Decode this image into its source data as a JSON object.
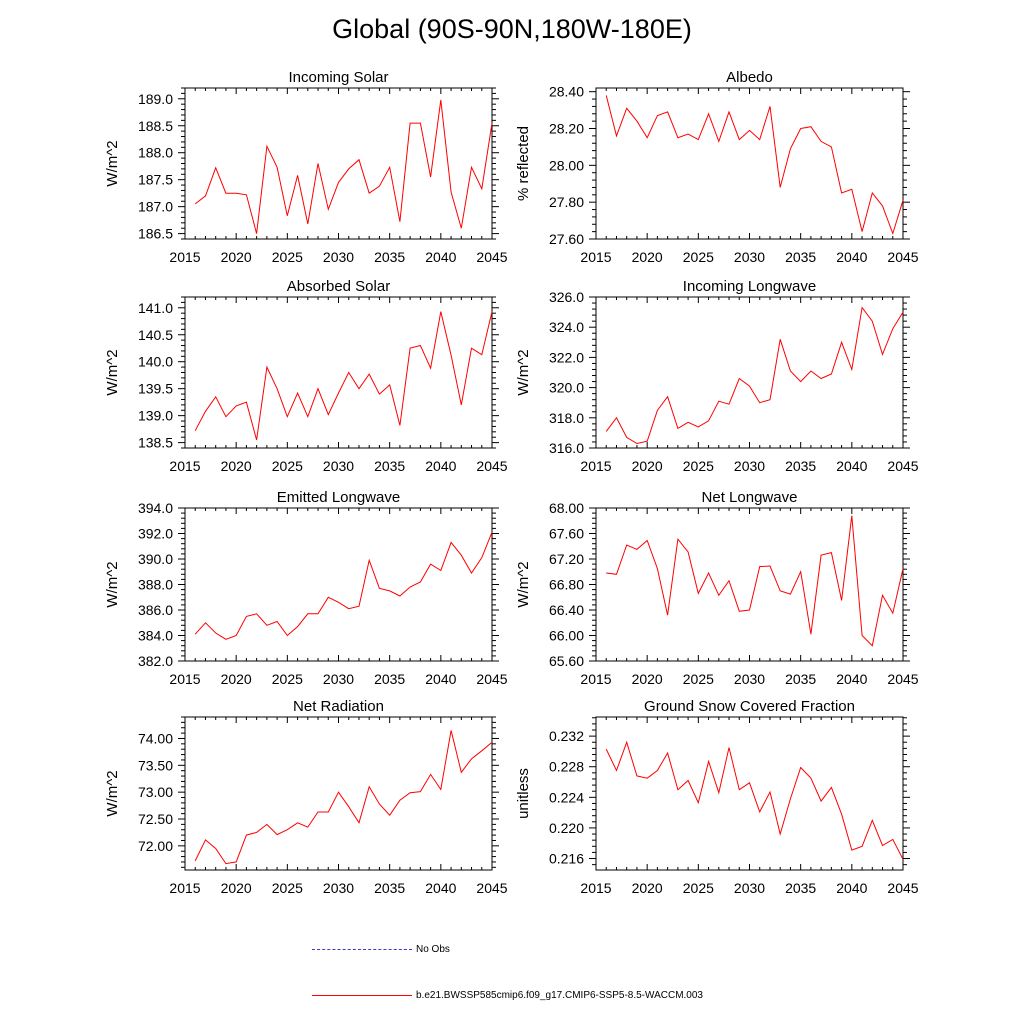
{
  "figure": {
    "title": "Global (90S-90N,180W-180E)",
    "line_color": "#ff0000",
    "obs_color": "#3a3acc"
  },
  "legend": {
    "obs_label": "No Obs",
    "model_label": "b.e21.BWSSP585cmip6.f09_g17.CMIP6-SSP5-8.5-WACCM.003"
  },
  "chart_data": [
    {
      "type": "line",
      "title": "Incoming Solar",
      "ylabel": "W/m^2",
      "xlim": [
        2015,
        2045
      ],
      "ylim": [
        186.4,
        189.2
      ],
      "xticks": [
        2015,
        2020,
        2025,
        2030,
        2035,
        2040,
        2045
      ],
      "yticks": [
        186.5,
        187.0,
        187.5,
        188.0,
        188.5,
        189.0
      ],
      "ydec": 1,
      "x": [
        2016,
        2017,
        2018,
        2019,
        2020,
        2021,
        2022,
        2023,
        2024,
        2025,
        2026,
        2027,
        2028,
        2029,
        2030,
        2031,
        2032,
        2033,
        2034,
        2035,
        2036,
        2037,
        2038,
        2039,
        2040,
        2041,
        2042,
        2043,
        2044,
        2045
      ],
      "values": [
        187.05,
        187.2,
        187.72,
        187.25,
        187.25,
        187.22,
        186.5,
        188.12,
        187.73,
        186.83,
        187.58,
        186.68,
        187.8,
        186.95,
        187.45,
        187.7,
        187.87,
        187.25,
        187.38,
        187.73,
        186.72,
        188.55,
        188.55,
        187.55,
        188.98,
        187.27,
        186.6,
        187.73,
        187.33,
        188.55
      ]
    },
    {
      "type": "line",
      "title": "Albedo",
      "ylabel": "% reflected",
      "xlim": [
        2015,
        2045
      ],
      "ylim": [
        27.6,
        28.42
      ],
      "xticks": [
        2015,
        2020,
        2025,
        2030,
        2035,
        2040,
        2045
      ],
      "yticks": [
        27.6,
        27.8,
        28.0,
        28.2,
        28.4
      ],
      "ydec": 2,
      "x": [
        2016,
        2017,
        2018,
        2019,
        2020,
        2021,
        2022,
        2023,
        2024,
        2025,
        2026,
        2027,
        2028,
        2029,
        2030,
        2031,
        2032,
        2033,
        2034,
        2035,
        2036,
        2037,
        2038,
        2039,
        2040,
        2041,
        2042,
        2043,
        2044,
        2045
      ],
      "values": [
        28.38,
        28.16,
        28.31,
        28.24,
        28.15,
        28.27,
        28.29,
        28.15,
        28.17,
        28.14,
        28.28,
        28.13,
        28.29,
        28.14,
        28.19,
        28.14,
        28.32,
        27.88,
        28.09,
        28.2,
        28.21,
        28.13,
        28.1,
        27.85,
        27.87,
        27.64,
        27.85,
        27.78,
        27.63,
        27.81
      ]
    },
    {
      "type": "line",
      "title": "Absorbed Solar",
      "ylabel": "W/m^2",
      "xlim": [
        2015,
        2045
      ],
      "ylim": [
        138.4,
        141.2
      ],
      "xticks": [
        2015,
        2020,
        2025,
        2030,
        2035,
        2040,
        2045
      ],
      "yticks": [
        138.5,
        139.0,
        139.5,
        140.0,
        140.5,
        141.0
      ],
      "ydec": 1,
      "x": [
        2016,
        2017,
        2018,
        2019,
        2020,
        2021,
        2022,
        2023,
        2024,
        2025,
        2026,
        2027,
        2028,
        2029,
        2030,
        2031,
        2032,
        2033,
        2034,
        2035,
        2036,
        2037,
        2038,
        2039,
        2040,
        2041,
        2042,
        2043,
        2044,
        2045
      ],
      "values": [
        138.72,
        139.08,
        139.35,
        138.98,
        139.18,
        139.25,
        138.55,
        139.9,
        139.5,
        138.98,
        139.42,
        138.98,
        139.5,
        139.02,
        139.42,
        139.8,
        139.5,
        139.77,
        139.4,
        139.57,
        138.82,
        140.25,
        140.3,
        139.88,
        140.93,
        140.12,
        139.2,
        140.25,
        140.13,
        140.93
      ]
    },
    {
      "type": "line",
      "title": "Incoming Longwave",
      "ylabel": "W/m^2",
      "xlim": [
        2015,
        2045
      ],
      "ylim": [
        316.0,
        326.0
      ],
      "xticks": [
        2015,
        2020,
        2025,
        2030,
        2035,
        2040,
        2045
      ],
      "yticks": [
        316.0,
        318.0,
        320.0,
        322.0,
        324.0,
        326.0
      ],
      "ydec": 1,
      "x": [
        2016,
        2017,
        2018,
        2019,
        2020,
        2021,
        2022,
        2023,
        2024,
        2025,
        2026,
        2027,
        2028,
        2029,
        2030,
        2031,
        2032,
        2033,
        2034,
        2035,
        2036,
        2037,
        2038,
        2039,
        2040,
        2041,
        2042,
        2043,
        2044,
        2045
      ],
      "values": [
        317.1,
        318.0,
        316.7,
        316.3,
        316.45,
        318.5,
        319.4,
        317.3,
        317.7,
        317.4,
        317.8,
        319.1,
        318.9,
        320.6,
        320.1,
        319.0,
        319.2,
        323.2,
        321.1,
        320.4,
        321.1,
        320.6,
        320.9,
        323.0,
        321.2,
        325.3,
        324.4,
        322.2,
        323.9,
        325.0
      ]
    },
    {
      "type": "line",
      "title": "Emitted Longwave",
      "ylabel": "W/m^2",
      "xlim": [
        2015,
        2045
      ],
      "ylim": [
        382.0,
        394.0
      ],
      "xticks": [
        2015,
        2020,
        2025,
        2030,
        2035,
        2040,
        2045
      ],
      "yticks": [
        382.0,
        384.0,
        386.0,
        388.0,
        390.0,
        392.0,
        394.0
      ],
      "ydec": 1,
      "x": [
        2016,
        2017,
        2018,
        2019,
        2020,
        2021,
        2022,
        2023,
        2024,
        2025,
        2026,
        2027,
        2028,
        2029,
        2030,
        2031,
        2032,
        2033,
        2034,
        2035,
        2036,
        2037,
        2038,
        2039,
        2040,
        2041,
        2042,
        2043,
        2044,
        2045
      ],
      "values": [
        384.1,
        385.0,
        384.2,
        383.7,
        384.0,
        385.5,
        385.7,
        384.8,
        385.1,
        384.0,
        384.7,
        385.7,
        385.7,
        387.0,
        386.6,
        386.1,
        386.3,
        389.9,
        387.7,
        387.5,
        387.1,
        387.8,
        388.2,
        389.6,
        389.1,
        391.3,
        390.3,
        388.9,
        390.1,
        392.1
      ]
    },
    {
      "type": "line",
      "title": "Net Longwave",
      "ylabel": "W/m^2",
      "xlim": [
        2015,
        2045
      ],
      "ylim": [
        65.6,
        68.0
      ],
      "xticks": [
        2015,
        2020,
        2025,
        2030,
        2035,
        2040,
        2045
      ],
      "yticks": [
        65.6,
        66.0,
        66.4,
        66.8,
        67.2,
        67.6,
        68.0
      ],
      "ydec": 2,
      "x": [
        2016,
        2017,
        2018,
        2019,
        2020,
        2021,
        2022,
        2023,
        2024,
        2025,
        2026,
        2027,
        2028,
        2029,
        2030,
        2031,
        2032,
        2033,
        2034,
        2035,
        2036,
        2037,
        2038,
        2039,
        2040,
        2041,
        2042,
        2043,
        2044,
        2045
      ],
      "values": [
        66.98,
        66.96,
        67.42,
        67.35,
        67.49,
        67.05,
        66.32,
        67.51,
        67.31,
        66.66,
        66.98,
        66.63,
        66.86,
        66.38,
        66.4,
        67.08,
        67.09,
        66.7,
        66.65,
        67.0,
        66.02,
        67.26,
        67.3,
        66.55,
        67.88,
        66.0,
        65.84,
        66.63,
        66.35,
        67.05
      ]
    },
    {
      "type": "line",
      "title": "Net Radiation",
      "ylabel": "W/m^2",
      "xlim": [
        2015,
        2045
      ],
      "ylim": [
        71.55,
        74.4
      ],
      "xticks": [
        2015,
        2020,
        2025,
        2030,
        2035,
        2040,
        2045
      ],
      "yticks": [
        72.0,
        72.5,
        73.0,
        73.5,
        74.0
      ],
      "ydec": 2,
      "x": [
        2016,
        2017,
        2018,
        2019,
        2020,
        2021,
        2022,
        2023,
        2024,
        2025,
        2026,
        2027,
        2028,
        2029,
        2030,
        2031,
        2032,
        2033,
        2034,
        2035,
        2036,
        2037,
        2038,
        2039,
        2040,
        2041,
        2042,
        2043,
        2044,
        2045
      ],
      "values": [
        71.72,
        72.11,
        71.95,
        71.67,
        71.7,
        72.2,
        72.25,
        72.4,
        72.21,
        72.3,
        72.43,
        72.35,
        72.63,
        72.63,
        73.0,
        72.73,
        72.43,
        73.1,
        72.78,
        72.57,
        72.85,
        72.99,
        73.01,
        73.33,
        73.05,
        74.15,
        73.37,
        73.62,
        73.77,
        73.93
      ]
    },
    {
      "type": "line",
      "title": "Ground Snow Covered Fraction",
      "ylabel": "unitless",
      "xlim": [
        2015,
        2045
      ],
      "ylim": [
        0.2145,
        0.2345
      ],
      "xticks": [
        2015,
        2020,
        2025,
        2030,
        2035,
        2040,
        2045
      ],
      "yticks": [
        0.216,
        0.22,
        0.224,
        0.228,
        0.232
      ],
      "ydec": 3,
      "x": [
        2016,
        2017,
        2018,
        2019,
        2020,
        2021,
        2022,
        2023,
        2024,
        2025,
        2026,
        2027,
        2028,
        2029,
        2030,
        2031,
        2032,
        2033,
        2034,
        2035,
        2036,
        2037,
        2038,
        2039,
        2040,
        2041,
        2042,
        2043,
        2044,
        2045
      ],
      "values": [
        0.2303,
        0.2275,
        0.2312,
        0.2268,
        0.2265,
        0.2275,
        0.2298,
        0.225,
        0.2262,
        0.2233,
        0.2287,
        0.2246,
        0.2305,
        0.225,
        0.2259,
        0.2221,
        0.2247,
        0.2192,
        0.2238,
        0.2279,
        0.2265,
        0.2235,
        0.2253,
        0.2218,
        0.2171,
        0.2176,
        0.221,
        0.2177,
        0.2185,
        0.2159
      ]
    }
  ]
}
